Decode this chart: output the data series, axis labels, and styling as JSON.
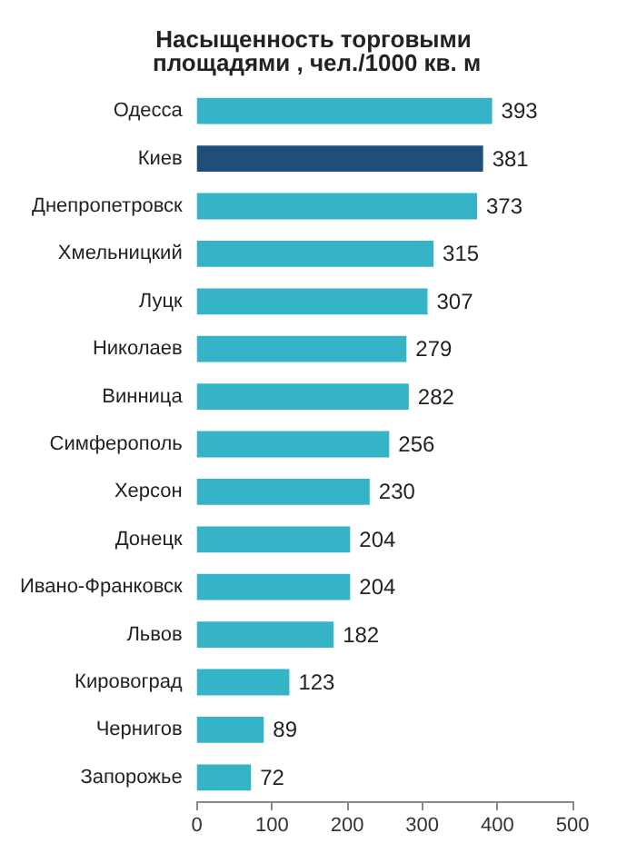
{
  "chart_data": {
    "type": "bar",
    "orientation": "horizontal",
    "title": "Насыщенность торговыми площадями , чел./1000 кв. м",
    "categories": [
      "Одесса",
      "Киев",
      "Днепропетровск",
      "Хмельницкий",
      "Луцк",
      "Николаев",
      "Винница",
      "Симферополь",
      "Херсон",
      "Донецк",
      "Ивано-Франковск",
      "Львов",
      "Кировоград",
      "Чернигов",
      "Запорожье"
    ],
    "values": [
      393,
      381,
      373,
      315,
      307,
      279,
      282,
      256,
      230,
      204,
      204,
      182,
      123,
      89,
      72
    ],
    "colors": [
      "#34b4c6",
      "#1f4e79",
      "#34b4c6",
      "#34b4c6",
      "#34b4c6",
      "#34b4c6",
      "#34b4c6",
      "#34b4c6",
      "#34b4c6",
      "#34b4c6",
      "#34b4c6",
      "#34b4c6",
      "#34b4c6",
      "#34b4c6",
      "#34b4c6"
    ],
    "xlim": [
      0,
      500
    ],
    "xticks": [
      0,
      100,
      200,
      300,
      400,
      500
    ],
    "grid": false,
    "data_labels": true
  }
}
